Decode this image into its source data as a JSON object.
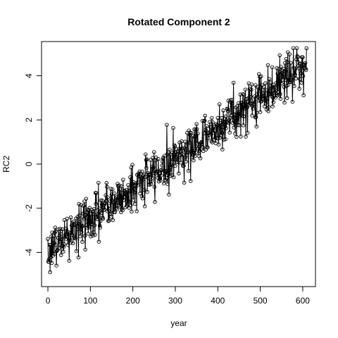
{
  "chart_data": {
    "type": "line",
    "title": "Rotated Component 2",
    "xlabel": "year",
    "ylabel": "RC2",
    "xlim": [
      -15,
      630
    ],
    "ylim": [
      -5.55,
      5.55
    ],
    "xticks": [
      0,
      100,
      200,
      300,
      400,
      500,
      600
    ],
    "yticks": [
      -4,
      -2,
      0,
      2,
      4
    ],
    "n_points": 610,
    "trend": {
      "x0": 0,
      "y0": -3.9,
      "x1": 609,
      "y1": 4.6
    },
    "noise_sd": 0.55,
    "marker": "open-circle",
    "line_color": "#000000",
    "grid": false,
    "legend": "none"
  }
}
